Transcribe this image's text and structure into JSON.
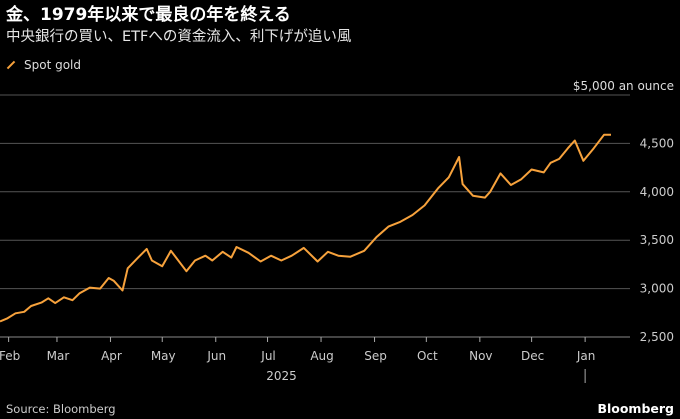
{
  "header": {
    "title": "金、1979年以来で最良の年を終える",
    "subtitle": "中央銀行の買い、ETFへの資金流入、利下げが追い風"
  },
  "footer": {
    "source": "Source: Bloomberg",
    "brand": "Bloomberg"
  },
  "colors": {
    "series": "#f7a23c",
    "grid": "#555555",
    "background": "#000000"
  },
  "chart_data": {
    "type": "line",
    "title": "金、1979年以来で最良の年を終える",
    "subtitle": "中央銀行の買い、ETFへの資金流入、利下げが追い風",
    "ylabel": "$5,000 an ounce",
    "ylim": [
      2500,
      5000
    ],
    "y_ticks": [
      2500,
      3000,
      3500,
      4000,
      4500
    ],
    "y_tick_labels": [
      "2,500",
      "3,000",
      "3,500",
      "4,000",
      "4,500"
    ],
    "top_label": "$5,000 an ounce",
    "x_range": [
      "2025-01-27",
      "2026-01-27"
    ],
    "x_ticks": [
      {
        "date": "2025-02-01",
        "label": "Feb"
      },
      {
        "date": "2025-03-01",
        "label": "Mar"
      },
      {
        "date": "2025-04-01",
        "label": "Apr"
      },
      {
        "date": "2025-05-01",
        "label": "May"
      },
      {
        "date": "2025-06-01",
        "label": "Jun"
      },
      {
        "date": "2025-07-01",
        "label": "Jul"
      },
      {
        "date": "2025-08-01",
        "label": "Aug"
      },
      {
        "date": "2025-09-01",
        "label": "Sep"
      },
      {
        "date": "2025-10-01",
        "label": "Oct"
      },
      {
        "date": "2025-11-01",
        "label": "Nov"
      },
      {
        "date": "2025-12-01",
        "label": "Dec"
      },
      {
        "date": "2026-01-01",
        "label": "Jan"
      }
    ],
    "year_label": "2025",
    "legend": "top-left",
    "grid": true,
    "series": [
      {
        "name": "Spot gold",
        "color": "#f7a23c",
        "points": [
          [
            "2025-01-27",
            2660
          ],
          [
            "2025-01-31",
            2690
          ],
          [
            "2025-02-05",
            2745
          ],
          [
            "2025-02-10",
            2760
          ],
          [
            "2025-02-14",
            2820
          ],
          [
            "2025-02-20",
            2855
          ],
          [
            "2025-02-24",
            2900
          ],
          [
            "2025-02-28",
            2850
          ],
          [
            "2025-03-05",
            2910
          ],
          [
            "2025-03-10",
            2880
          ],
          [
            "2025-03-14",
            2950
          ],
          [
            "2025-03-20",
            3010
          ],
          [
            "2025-03-26",
            3000
          ],
          [
            "2025-03-31",
            3110
          ],
          [
            "2025-04-03",
            3080
          ],
          [
            "2025-04-08",
            2980
          ],
          [
            "2025-04-11",
            3210
          ],
          [
            "2025-04-17",
            3320
          ],
          [
            "2025-04-22",
            3410
          ],
          [
            "2025-04-25",
            3290
          ],
          [
            "2025-05-01",
            3230
          ],
          [
            "2025-05-06",
            3390
          ],
          [
            "2025-05-09",
            3320
          ],
          [
            "2025-05-15",
            3180
          ],
          [
            "2025-05-20",
            3290
          ],
          [
            "2025-05-26",
            3340
          ],
          [
            "2025-05-30",
            3290
          ],
          [
            "2025-06-05",
            3380
          ],
          [
            "2025-06-10",
            3320
          ],
          [
            "2025-06-13",
            3430
          ],
          [
            "2025-06-20",
            3370
          ],
          [
            "2025-06-27",
            3280
          ],
          [
            "2025-07-03",
            3340
          ],
          [
            "2025-07-09",
            3290
          ],
          [
            "2025-07-15",
            3340
          ],
          [
            "2025-07-22",
            3420
          ],
          [
            "2025-07-30",
            3280
          ],
          [
            "2025-08-05",
            3380
          ],
          [
            "2025-08-11",
            3340
          ],
          [
            "2025-08-18",
            3330
          ],
          [
            "2025-08-26",
            3390
          ],
          [
            "2025-09-02",
            3530
          ],
          [
            "2025-09-09",
            3640
          ],
          [
            "2025-09-16",
            3690
          ],
          [
            "2025-09-23",
            3760
          ],
          [
            "2025-09-30",
            3860
          ],
          [
            "2025-10-08",
            4040
          ],
          [
            "2025-10-14",
            4150
          ],
          [
            "2025-10-20",
            4360
          ],
          [
            "2025-10-22",
            4080
          ],
          [
            "2025-10-28",
            3960
          ],
          [
            "2025-11-04",
            3940
          ],
          [
            "2025-11-07",
            4000
          ],
          [
            "2025-11-13",
            4190
          ],
          [
            "2025-11-19",
            4070
          ],
          [
            "2025-11-25",
            4130
          ],
          [
            "2025-12-01",
            4230
          ],
          [
            "2025-12-08",
            4200
          ],
          [
            "2025-12-12",
            4300
          ],
          [
            "2025-12-17",
            4340
          ],
          [
            "2025-12-22",
            4450
          ],
          [
            "2025-12-26",
            4530
          ],
          [
            "2025-12-31",
            4320
          ],
          [
            "2026-01-06",
            4450
          ],
          [
            "2026-01-12",
            4590
          ],
          [
            "2026-01-16",
            4590
          ]
        ]
      }
    ]
  }
}
